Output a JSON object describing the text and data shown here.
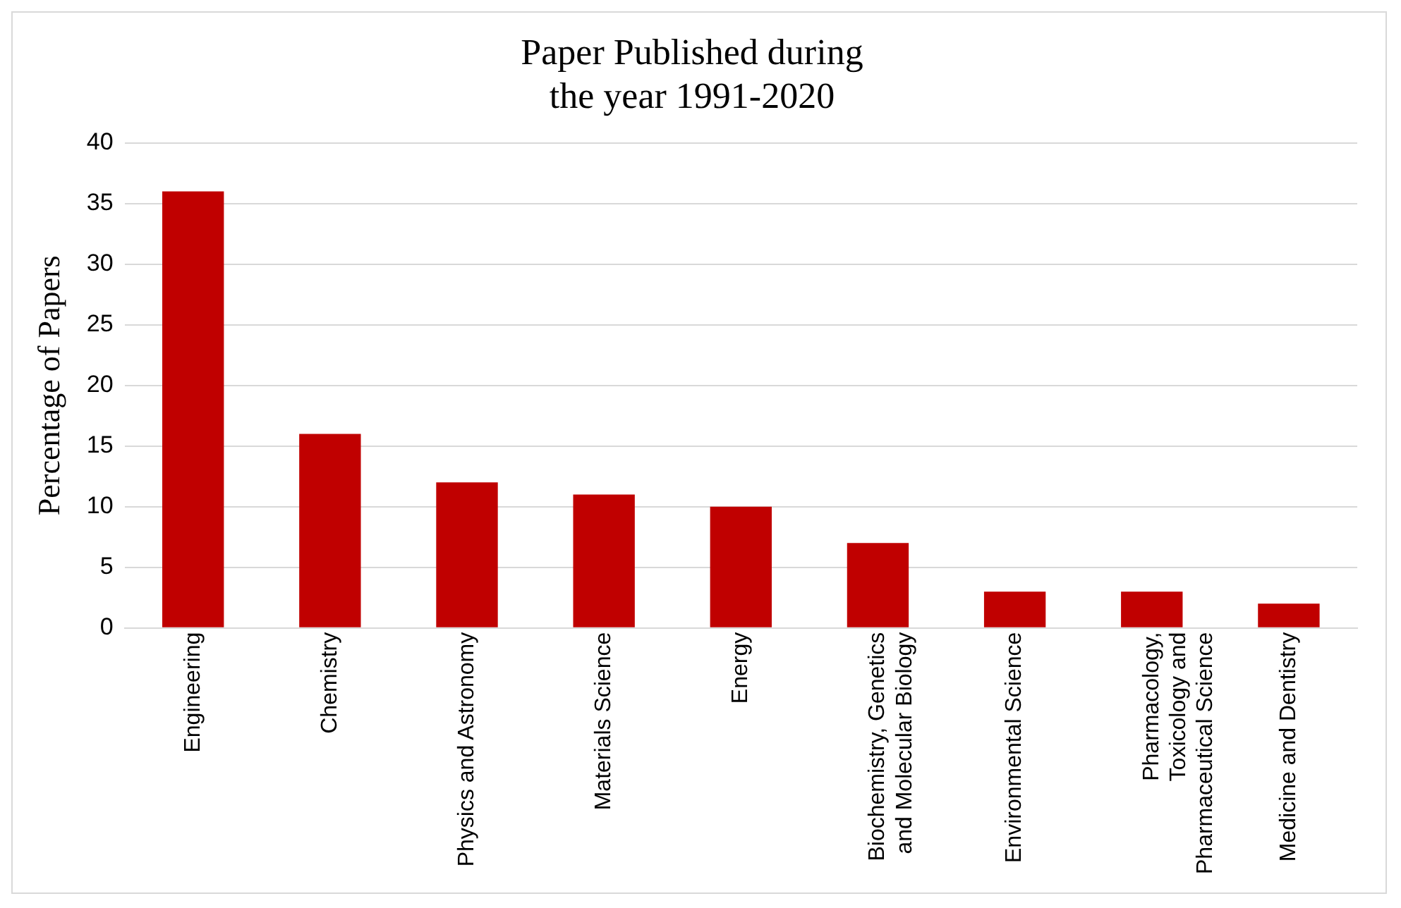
{
  "chart_data": {
    "type": "bar",
    "title": "Paper Published during the year 1991-2020",
    "ylabel": "Percentage of Papers",
    "categories": [
      "Engineering",
      "Chemistry",
      "Physics and Astronomy",
      "Materials Science",
      "Energy",
      "Biochemistry, Genetics and Molecular Biology",
      "Environmental Science",
      "Pharmacology, Toxicology and Pharmaceutical Science",
      "Medicine and Dentistry"
    ],
    "values": [
      36,
      16,
      12,
      11,
      10,
      7,
      3,
      3,
      2
    ],
    "color": "#c00000",
    "ylim": [
      0,
      40
    ],
    "yticks": [
      0,
      5,
      10,
      15,
      20,
      25,
      30,
      35,
      40
    ],
    "grid": "y",
    "legend": false
  }
}
